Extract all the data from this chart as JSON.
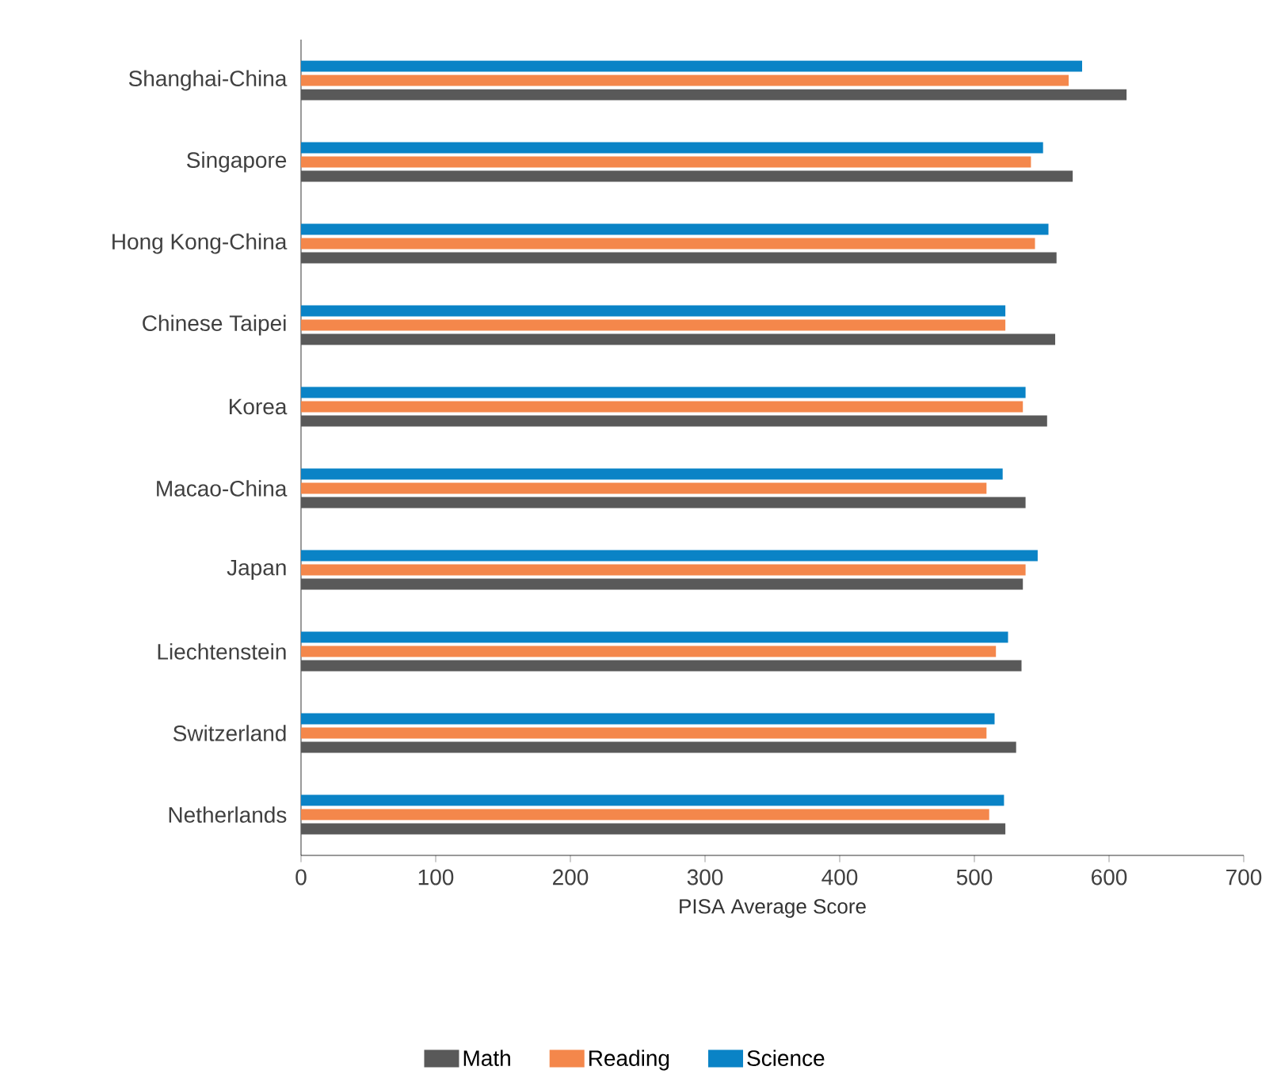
{
  "chart_data": {
    "type": "bar",
    "orientation": "horizontal",
    "categories": [
      "Shanghai-China",
      "Singapore",
      "Hong Kong-China",
      "Chinese Taipei",
      "Korea",
      "Macao-China",
      "Japan",
      "Liechtenstein",
      "Switzerland",
      "Netherlands"
    ],
    "series": [
      {
        "name": "Math",
        "color": "#595959",
        "values": [
          613,
          573,
          561,
          560,
          554,
          538,
          536,
          535,
          531,
          523
        ]
      },
      {
        "name": "Reading",
        "color": "#f4874b",
        "values": [
          570,
          542,
          545,
          523,
          536,
          509,
          538,
          516,
          509,
          511
        ]
      },
      {
        "name": "Science",
        "color": "#0a83c6",
        "values": [
          580,
          551,
          555,
          523,
          538,
          521,
          547,
          525,
          515,
          522
        ]
      }
    ],
    "xlabel": "PISA Average Score",
    "xlim": [
      0,
      700
    ],
    "xticks": [
      0,
      100,
      200,
      300,
      400,
      500,
      600,
      700
    ],
    "grid": false,
    "legend": "bottom"
  }
}
